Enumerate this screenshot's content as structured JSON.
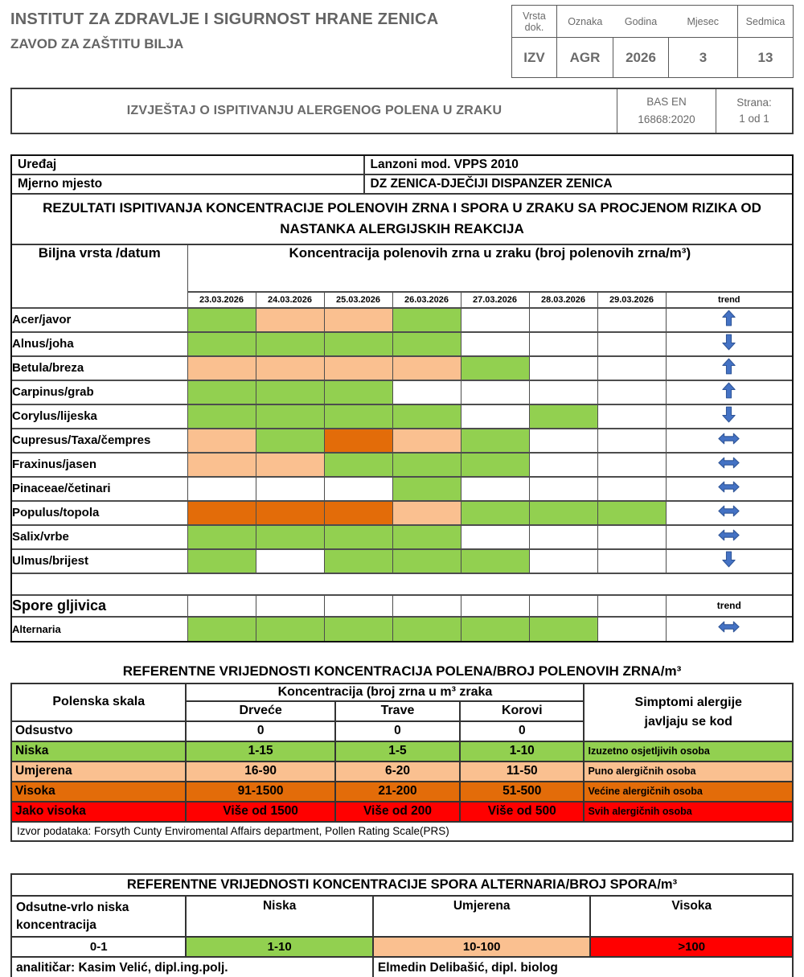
{
  "header": {
    "institute_line1": "INSTITUT ZA ZDRAVLJE I SIGURNOST HRANE ZENICA",
    "institute_line2": "ZAVOD ZA ZAŠTITU BILJA",
    "doc_table": {
      "headers": [
        "Vrsta dok.",
        "Oznaka",
        "Godina",
        "Mjesec",
        "Sedmica"
      ],
      "values": [
        "IZV",
        "AGR",
        "2026",
        "3",
        "13"
      ]
    },
    "title": "IZVJEŠTAJ O ISPITIVANJU ALERGENOG POLENA U ZRAKU",
    "standard_line1": "BAS EN",
    "standard_line2": "16868:2020",
    "page_label": "Strana:",
    "page_value": "1 od 1"
  },
  "info": {
    "device_label": "Uređaj",
    "device_value": "Lanzoni mod. VPPS 2010",
    "site_label": "Mjerno mjesto",
    "site_value": "DZ ZENICA-DJEČIJI DISPANZER ZENICA"
  },
  "results": {
    "section_title": "REZULTATI ISPITIVANJA KONCENTRACIJE POLENOVIH ZRNA I SPORA U ZRAKU SA PROCJENOM RIZIKA OD NASTANKA ALERGIJSKIH REAKCIJA",
    "col1_header": "Biljna vrsta /datum",
    "conc_header": "Koncentracija polenovih zrna u zraku (broj polenovih zrna/m³)",
    "dates": [
      "23.03.2026",
      "24.03.2026",
      "25.03.2026",
      "26.03.2026",
      "27.03.2026",
      "28.03.2026",
      "29.03.2026"
    ],
    "trend_label": "trend",
    "rows": [
      {
        "species": "Acer/javor",
        "levels": [
          "low",
          "moderate",
          "moderate",
          "low",
          "none",
          "none",
          "none"
        ],
        "trend": "up"
      },
      {
        "species": "Alnus/joha",
        "levels": [
          "low",
          "low",
          "low",
          "low",
          "none",
          "none",
          "none"
        ],
        "trend": "down"
      },
      {
        "species": "Betula/breza",
        "levels": [
          "moderate",
          "moderate",
          "moderate",
          "moderate",
          "low",
          "none",
          "none"
        ],
        "trend": "up"
      },
      {
        "species": "Carpinus/grab",
        "levels": [
          "low",
          "low",
          "low",
          "none",
          "none",
          "none",
          "none"
        ],
        "trend": "up"
      },
      {
        "species": "Corylus/lijeska",
        "levels": [
          "low",
          "low",
          "low",
          "low",
          "none",
          "low",
          "none"
        ],
        "trend": "down"
      },
      {
        "species": "Cupresus/Taxa/čempres",
        "levels": [
          "moderate",
          "low",
          "high",
          "moderate",
          "low",
          "none",
          "none"
        ],
        "trend": "both"
      },
      {
        "species": "Fraxinus/jasen",
        "levels": [
          "moderate",
          "moderate",
          "low",
          "low",
          "low",
          "none",
          "none"
        ],
        "trend": "both"
      },
      {
        "species": "Pinaceae/četinari",
        "levels": [
          "none",
          "none",
          "none",
          "low",
          "none",
          "none",
          "none"
        ],
        "trend": "both"
      },
      {
        "species": "Populus/topola",
        "levels": [
          "high",
          "high",
          "high",
          "moderate",
          "low",
          "low",
          "low"
        ],
        "trend": "both"
      },
      {
        "species": "Salix/vrbe",
        "levels": [
          "low",
          "low",
          "low",
          "low",
          "none",
          "none",
          "none"
        ],
        "trend": "both"
      },
      {
        "species": "Ulmus/brijest",
        "levels": [
          "low",
          "none",
          "low",
          "low",
          "low",
          "none",
          "none"
        ],
        "trend": "down"
      }
    ],
    "spore_section_label": "Spore gljivica",
    "spore_trend_label": "trend",
    "spore_rows": [
      {
        "species": "Alternaria",
        "levels": [
          "low",
          "low",
          "low",
          "low",
          "low",
          "low",
          "none"
        ],
        "trend": "both"
      }
    ]
  },
  "legend_colors": {
    "none": "#FFFFFF",
    "low": "#92D050",
    "moderate": "#FAC090",
    "high": "#E36C09",
    "very_high": "#FF0000"
  },
  "trend_arrow": {
    "fill": "#4472C4",
    "stroke": "#2F5597"
  },
  "ref_pollen": {
    "title": "REFERENTNE VRIJEDNOSTI KONCENTRACIJA POLENA/BROJ POLENOVIH ZRNA/m³",
    "col_scale": "Polenska skala",
    "col_conc": "Koncentracija (broj zrna u m³ zraka",
    "col_symptoms_line1": "Simptomi alergije",
    "col_symptoms_line2": "javljaju se kod",
    "subcols": [
      "Drveće",
      "Trave",
      "Korovi"
    ],
    "rows": [
      {
        "label": "Odsustvo",
        "drvece": "0",
        "trave": "0",
        "korovi": "0",
        "symptom": "",
        "level": "none"
      },
      {
        "label": "Niska",
        "drvece": "1-15",
        "trave": "1-5",
        "korovi": "1-10",
        "symptom": "Izuzetno osjetljivih osoba",
        "level": "low"
      },
      {
        "label": "Umjerena",
        "drvece": "16-90",
        "trave": "6-20",
        "korovi": "11-50",
        "symptom": "Puno alergičnih osoba",
        "level": "moderate"
      },
      {
        "label": "Visoka",
        "drvece": "91-1500",
        "trave": "21-200",
        "korovi": "51-500",
        "symptom": "Većine alergičnih osoba",
        "level": "high"
      },
      {
        "label": "Jako visoka",
        "drvece": "Više od 1500",
        "trave": "Više od 200",
        "korovi": "Više od 500",
        "symptom": "Svih alergičnih osoba",
        "level": "very_high"
      }
    ],
    "source": "Izvor podataka: Forsyth Cunty Enviromental Affairs department, Pollen Rating Scale(PRS)"
  },
  "ref_spores": {
    "title": "REFERENTNE VRIJEDNOSTI KONCENTRACIJE SPORA ALTERNARIA/BROJ SPORA/m³",
    "headers": [
      "Odsutne-vrlo niska koncentracija",
      "Niska",
      "Umjerena",
      "Visoka"
    ],
    "values": [
      "0-1",
      "1-10",
      "10-100",
      ">100"
    ],
    "value_levels": [
      "none",
      "low",
      "moderate",
      "very_high"
    ],
    "analyst_left": "analitičar: Kasim Velić,  dipl.ing.polj.",
    "analyst_right": "Elmedin Delibašić, dipl. biolog"
  }
}
